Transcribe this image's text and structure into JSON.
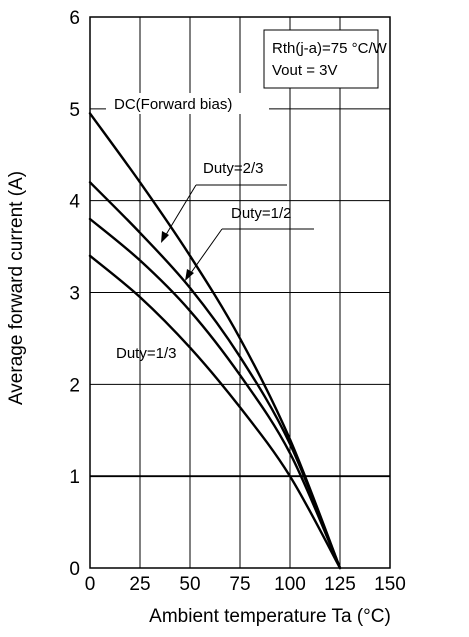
{
  "chart_data": {
    "type": "line",
    "title": "",
    "xlabel": "Ambient temperature  Ta  (°C)",
    "ylabel": "Average forward current  (A)",
    "xlim": [
      0,
      150
    ],
    "ylim": [
      0,
      6
    ],
    "x_ticks": [
      "0",
      "25",
      "50",
      "75",
      "100",
      "125",
      "150"
    ],
    "y_ticks": [
      "0",
      "1",
      "2",
      "3",
      "4",
      "5",
      "6"
    ],
    "grid": true,
    "reference_line_y": 1,
    "info_box": [
      "Rth(j-a)=75 °C/W",
      "Vout  = 3V"
    ],
    "series": [
      {
        "name": "DC(Forward bias)",
        "x": [
          0,
          25,
          50,
          75,
          100,
          125
        ],
        "y": [
          4.95,
          4.2,
          3.4,
          2.5,
          1.4,
          0
        ]
      },
      {
        "name": "Duty=2/3",
        "x": [
          0,
          25,
          50,
          75,
          100,
          125
        ],
        "y": [
          4.2,
          3.65,
          3.05,
          2.3,
          1.35,
          0
        ]
      },
      {
        "name": "Duty=1/2",
        "x": [
          0,
          25,
          50,
          75,
          100,
          125
        ],
        "y": [
          3.8,
          3.35,
          2.8,
          2.1,
          1.25,
          0
        ]
      },
      {
        "name": "Duty=1/3",
        "x": [
          0,
          25,
          50,
          75,
          100,
          125
        ],
        "y": [
          3.4,
          2.95,
          2.4,
          1.75,
          1.0,
          0
        ]
      }
    ]
  }
}
